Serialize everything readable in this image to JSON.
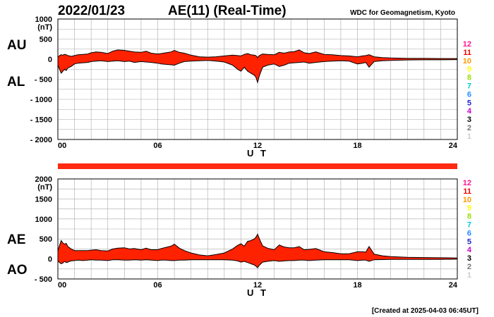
{
  "header": {
    "date": "2022/01/23",
    "title": "AE(11) (Real-Time)",
    "source": "WDC for Geomagnetism, Kyoto"
  },
  "footer": {
    "created": "[Created at 2025-04-03 06:45UT]"
  },
  "colors": {
    "fill": "#ff2200",
    "line": "#000000",
    "grid": "#aaaaaa",
    "bar": "#ff2a10"
  },
  "legend": {
    "items": [
      {
        "label": "12",
        "color": "#ff1493"
      },
      {
        "label": "11",
        "color": "#ee0000"
      },
      {
        "label": "10",
        "color": "#ff9900"
      },
      {
        "label": "9",
        "color": "#ffff00"
      },
      {
        "label": "8",
        "color": "#99dd00"
      },
      {
        "label": "7",
        "color": "#00cccc"
      },
      {
        "label": "6",
        "color": "#1e90ff"
      },
      {
        "label": "5",
        "color": "#2222cc"
      },
      {
        "label": "4",
        "color": "#cc00cc"
      },
      {
        "label": "3",
        "color": "#000000"
      },
      {
        "label": "2",
        "color": "#777777"
      },
      {
        "label": "1",
        "color": "#cccccc"
      }
    ]
  },
  "chart_data": [
    {
      "type": "area",
      "panel": "top",
      "ylabel_unit": "(nT)",
      "xlabel": "U T",
      "series_labels": [
        "AU",
        "AL"
      ],
      "ylim": [
        -2000,
        1000
      ],
      "xlim": [
        0,
        24
      ],
      "xticks": [
        "00",
        "06",
        "12",
        "18",
        "24"
      ],
      "yticks": [
        {
          "v": 1000,
          "label": "1000"
        },
        {
          "v": 500,
          "label": "500"
        },
        {
          "v": 0,
          "label": "0"
        },
        {
          "v": -500,
          "label": "- 500"
        },
        {
          "v": -1000,
          "label": "- 1000"
        },
        {
          "v": -1500,
          "label": "- 1500"
        },
        {
          "v": -2000,
          "label": "- 2000"
        }
      ],
      "x": [
        0,
        0.1,
        0.2,
        0.3,
        0.4,
        0.5,
        0.6,
        0.7,
        0.8,
        1.0,
        1.2,
        1.5,
        1.8,
        2.0,
        2.3,
        2.6,
        3.0,
        3.3,
        3.6,
        4.0,
        4.3,
        4.6,
        5.0,
        5.3,
        5.6,
        6.0,
        6.2,
        6.5,
        6.8,
        7.0,
        7.3,
        7.6,
        8.0,
        8.5,
        9.0,
        9.5,
        10.0,
        10.5,
        10.8,
        11.0,
        11.2,
        11.4,
        11.6,
        11.8,
        11.9,
        12.0,
        12.1,
        12.3,
        12.6,
        13.0,
        13.3,
        13.6,
        13.9,
        14.2,
        14.5,
        14.8,
        15.1,
        15.5,
        16.0,
        16.5,
        17.0,
        17.5,
        18.0,
        18.3,
        18.5,
        18.7,
        19.0,
        19.5,
        20.0,
        21.0,
        22.0,
        23.0,
        24.0
      ],
      "upper": [
        50,
        90,
        110,
        100,
        120,
        110,
        90,
        80,
        70,
        90,
        110,
        120,
        130,
        160,
        180,
        170,
        140,
        200,
        230,
        220,
        200,
        180,
        170,
        200,
        150,
        130,
        140,
        160,
        180,
        220,
        170,
        150,
        100,
        60,
        50,
        60,
        80,
        100,
        90,
        80,
        120,
        140,
        110,
        100,
        90,
        40,
        90,
        130,
        120,
        110,
        170,
        150,
        180,
        190,
        230,
        160,
        140,
        180,
        120,
        110,
        90,
        80,
        60,
        80,
        90,
        110,
        60,
        40,
        30,
        20,
        20,
        15,
        15
      ],
      "lower": [
        -150,
        -250,
        -350,
        -300,
        -250,
        -280,
        -220,
        -200,
        -180,
        -120,
        -100,
        -90,
        -80,
        -60,
        -50,
        -40,
        -60,
        -50,
        -40,
        -60,
        -50,
        -80,
        -60,
        -70,
        -80,
        -100,
        -120,
        -130,
        -140,
        -150,
        -100,
        -60,
        -50,
        -40,
        -30,
        -50,
        -70,
        -150,
        -250,
        -300,
        -200,
        -300,
        -350,
        -400,
        -450,
        -580,
        -420,
        -200,
        -150,
        -120,
        -180,
        -150,
        -100,
        -90,
        -80,
        -70,
        -100,
        -80,
        -60,
        -50,
        -40,
        -50,
        -120,
        -100,
        -80,
        -200,
        -60,
        -40,
        -30,
        -20,
        -15,
        -15,
        -10
      ]
    },
    {
      "type": "area",
      "panel": "bottom",
      "ylabel_unit": "(nT)",
      "xlabel": "U T",
      "series_labels": [
        "AE",
        "AO"
      ],
      "ylim": [
        -500,
        2000
      ],
      "xlim": [
        0,
        24
      ],
      "xticks": [
        "00",
        "06",
        "12",
        "18",
        "24"
      ],
      "yticks": [
        {
          "v": 2000,
          "label": "2000"
        },
        {
          "v": 1500,
          "label": "1500"
        },
        {
          "v": 1000,
          "label": "1000"
        },
        {
          "v": 500,
          "label": "500"
        },
        {
          "v": 0,
          "label": "0"
        },
        {
          "v": -500,
          "label": "- 500"
        }
      ],
      "x": [
        0,
        0.1,
        0.2,
        0.3,
        0.4,
        0.5,
        0.6,
        0.7,
        0.8,
        1.0,
        1.2,
        1.5,
        1.8,
        2.0,
        2.3,
        2.6,
        3.0,
        3.3,
        3.6,
        4.0,
        4.3,
        4.6,
        5.0,
        5.3,
        5.6,
        6.0,
        6.2,
        6.5,
        6.8,
        7.0,
        7.3,
        7.6,
        8.0,
        8.5,
        9.0,
        9.5,
        10.0,
        10.5,
        10.8,
        11.0,
        11.2,
        11.4,
        11.6,
        11.8,
        11.9,
        12.0,
        12.1,
        12.3,
        12.6,
        13.0,
        13.3,
        13.6,
        13.9,
        14.2,
        14.5,
        14.8,
        15.1,
        15.5,
        16.0,
        16.5,
        17.0,
        17.5,
        18.0,
        18.3,
        18.5,
        18.7,
        19.0,
        19.5,
        20.0,
        21.0,
        22.0,
        23.0,
        24.0
      ],
      "upper": [
        200,
        340,
        460,
        400,
        370,
        390,
        310,
        280,
        250,
        210,
        210,
        210,
        210,
        220,
        230,
        210,
        200,
        250,
        270,
        280,
        250,
        260,
        230,
        270,
        230,
        230,
        260,
        290,
        320,
        370,
        270,
        210,
        150,
        100,
        80,
        110,
        150,
        250,
        340,
        380,
        320,
        440,
        460,
        500,
        540,
        620,
        510,
        330,
        270,
        230,
        350,
        300,
        280,
        280,
        310,
        230,
        240,
        260,
        180,
        160,
        130,
        130,
        180,
        180,
        170,
        310,
        120,
        80,
        60,
        40,
        35,
        30,
        25
      ],
      "lower": [
        -50,
        -90,
        -120,
        -100,
        -60,
        -90,
        -80,
        -60,
        -50,
        -40,
        -30,
        -40,
        -30,
        -20,
        -30,
        -30,
        -40,
        -20,
        -20,
        -30,
        -30,
        -20,
        -30,
        -20,
        -30,
        -40,
        -30,
        -30,
        -40,
        -40,
        -30,
        -30,
        -20,
        -20,
        -20,
        -20,
        -20,
        -30,
        -50,
        -80,
        -60,
        -90,
        -120,
        -150,
        -180,
        -220,
        -160,
        -80,
        -60,
        -40,
        -60,
        -50,
        -40,
        -40,
        -30,
        -30,
        -40,
        -30,
        -20,
        -20,
        -20,
        -20,
        -40,
        -30,
        -30,
        -60,
        -20,
        -15,
        -10,
        -10,
        -10,
        -10,
        -5
      ]
    }
  ]
}
